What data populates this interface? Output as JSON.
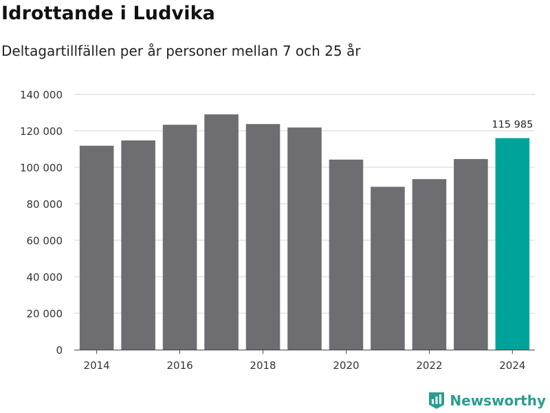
{
  "title": "Idrottande i Ludvika",
  "subtitle": "Deltagartillfällen per år personer mellan 7 och 25 år",
  "brand": {
    "name": "Newsworthy",
    "icon": "newsworthy-logo-icon"
  },
  "colors": {
    "bar": "#6e6d72",
    "highlight": "#00a39a",
    "grid": "#dcdcdc",
    "brand": "#2a9d8f"
  },
  "chart_data": {
    "type": "bar",
    "title": "Idrottande i Ludvika",
    "subtitle": "Deltagartillfällen per år personer mellan 7 och 25 år",
    "categories": [
      "2014",
      "2015",
      "2016",
      "2017",
      "2018",
      "2019",
      "2020",
      "2021",
      "2022",
      "2023",
      "2024"
    ],
    "values": [
      111800,
      114700,
      123300,
      129000,
      123700,
      121800,
      104200,
      89300,
      93500,
      104500,
      115985
    ],
    "highlight_index": 10,
    "highlight_label": "115 985",
    "x_tick_labels": [
      "2014",
      "2016",
      "2018",
      "2020",
      "2022",
      "2024"
    ],
    "y_ticks": [
      0,
      20000,
      40000,
      60000,
      80000,
      100000,
      120000,
      140000
    ],
    "y_tick_labels": [
      "0",
      "20 000",
      "40 000",
      "60 000",
      "80 000",
      "100 000",
      "120 000",
      "140 000"
    ],
    "ylim": [
      0,
      140000
    ],
    "grid": true,
    "legend": "none"
  }
}
